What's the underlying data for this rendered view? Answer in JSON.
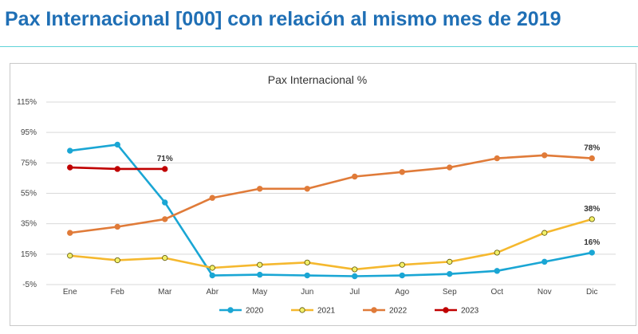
{
  "page": {
    "title": "Pax Internacional [000] con relación al mismo mes de 2019"
  },
  "chart_data": {
    "type": "line",
    "title": "Pax Internacional %",
    "xlabel": "",
    "ylabel": "",
    "categories": [
      "Ene",
      "Feb",
      "Mar",
      "Abr",
      "May",
      "Jun",
      "Jul",
      "Ago",
      "Sep",
      "Oct",
      "Nov",
      "Dic"
    ],
    "ylim": [
      -5,
      115
    ],
    "yticks": [
      -5,
      15,
      35,
      55,
      75,
      95,
      115
    ],
    "ytick_labels": [
      "-5%",
      "15%",
      "35%",
      "55%",
      "75%",
      "95%",
      "115%"
    ],
    "grid": true,
    "legend_position": "bottom",
    "series": [
      {
        "name": "2020",
        "color": "#1aa6d4",
        "values": [
          83,
          87,
          49,
          1,
          1.5,
          1,
          0.5,
          1,
          2,
          4,
          10,
          16
        ],
        "marker": "filled"
      },
      {
        "name": "2021",
        "color": "#f5b82e",
        "values": [
          14,
          11,
          12.5,
          6,
          8,
          9.5,
          5,
          8,
          10,
          16,
          29,
          38
        ],
        "marker": "hollow"
      },
      {
        "name": "2022",
        "color": "#e07b39",
        "values": [
          29,
          33,
          38,
          52,
          58,
          58,
          66,
          69,
          72,
          78,
          80,
          78
        ],
        "marker": "filled"
      },
      {
        "name": "2023",
        "color": "#c00000",
        "values": [
          72,
          71,
          71,
          null,
          null,
          null,
          null,
          null,
          null,
          null,
          null,
          null
        ],
        "marker": "filled"
      }
    ],
    "annotations": [
      {
        "series": "2023",
        "index": 2,
        "text": "71%"
      },
      {
        "series": "2022",
        "index": 11,
        "text": "78%"
      },
      {
        "series": "2021",
        "index": 11,
        "text": "38%"
      },
      {
        "series": "2020",
        "index": 11,
        "text": "16%"
      }
    ]
  }
}
